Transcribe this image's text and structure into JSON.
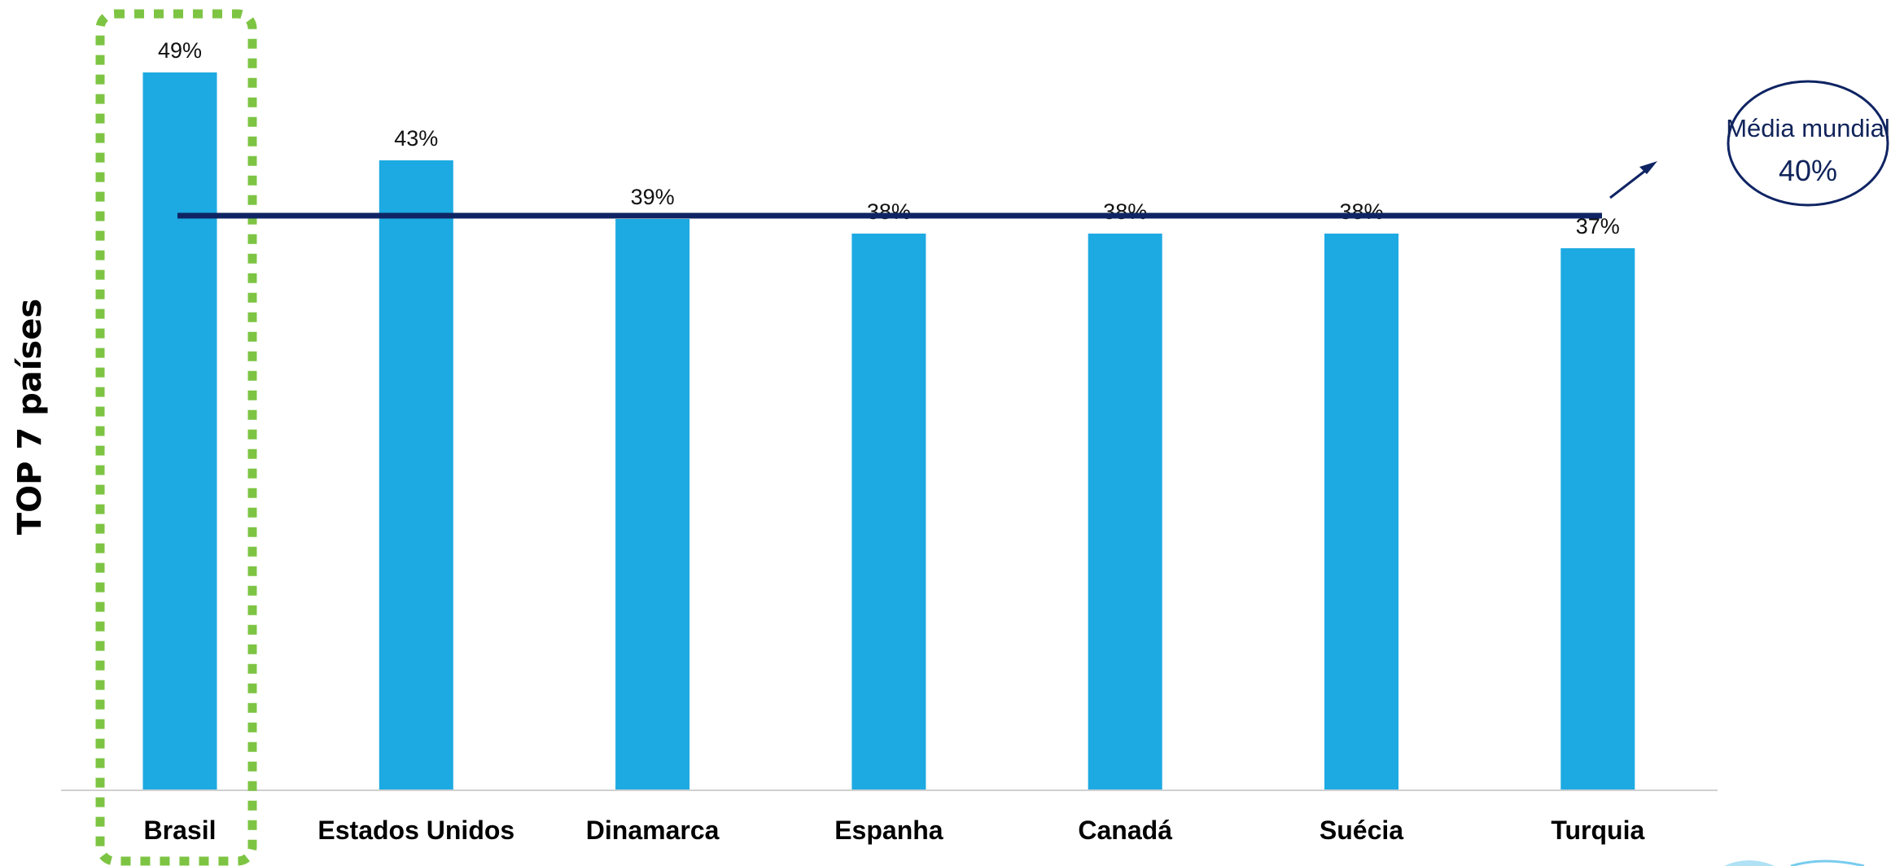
{
  "chart_data": {
    "type": "bar",
    "ylabel": "TOP 7 países",
    "categories": [
      "Brasil",
      "Estados Unidos",
      "Dinamarca",
      "Espanha",
      "Canadá",
      "Suécia",
      "Turquia"
    ],
    "values": [
      49,
      43,
      39,
      38,
      38,
      38,
      37
    ],
    "value_labels": [
      "49%",
      "43%",
      "39%",
      "38%",
      "38%",
      "38%",
      "37%"
    ],
    "ylim": [
      0,
      54
    ],
    "grid": false,
    "highlight": {
      "category": "Brasil",
      "color": "#7dc443"
    },
    "reference_line": {
      "value": 40,
      "title": "Média mundial",
      "value_label": "40%",
      "color": "#0f2463"
    },
    "colors": {
      "bar": "#1daae2",
      "axis": "#d0d0d0"
    }
  }
}
